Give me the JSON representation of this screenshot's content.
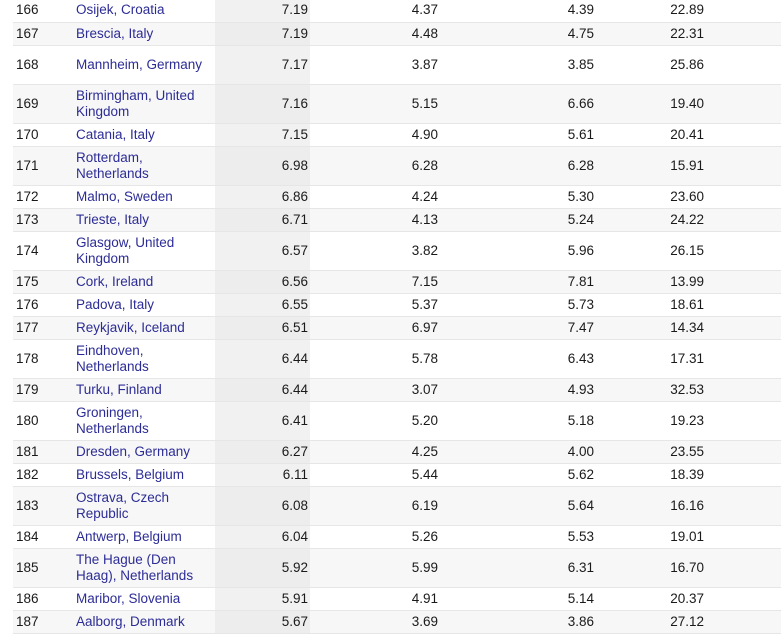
{
  "rows": [
    {
      "rank": "166",
      "city": "Osijek, Croatia",
      "index": "7.19",
      "v1": "4.37",
      "v2": "4.39",
      "v3": "22.89"
    },
    {
      "rank": "167",
      "city": "Brescia, Italy",
      "index": "7.19",
      "v1": "4.48",
      "v2": "4.75",
      "v3": "22.31"
    },
    {
      "rank": "168",
      "city": "Mannheim, Germany",
      "index": "7.17",
      "v1": "3.87",
      "v2": "3.85",
      "v3": "25.86"
    },
    {
      "rank": "169",
      "city": "Birmingham, United Kingdom",
      "index": "7.16",
      "v1": "5.15",
      "v2": "6.66",
      "v3": "19.40"
    },
    {
      "rank": "170",
      "city": "Catania, Italy",
      "index": "7.15",
      "v1": "4.90",
      "v2": "5.61",
      "v3": "20.41"
    },
    {
      "rank": "171",
      "city": "Rotterdam, Netherlands",
      "index": "6.98",
      "v1": "6.28",
      "v2": "6.28",
      "v3": "15.91"
    },
    {
      "rank": "172",
      "city": "Malmo, Sweden",
      "index": "6.86",
      "v1": "4.24",
      "v2": "5.30",
      "v3": "23.60"
    },
    {
      "rank": "173",
      "city": "Trieste, Italy",
      "index": "6.71",
      "v1": "4.13",
      "v2": "5.24",
      "v3": "24.22"
    },
    {
      "rank": "174",
      "city": "Glasgow, United Kingdom",
      "index": "6.57",
      "v1": "3.82",
      "v2": "5.96",
      "v3": "26.15"
    },
    {
      "rank": "175",
      "city": "Cork, Ireland",
      "index": "6.56",
      "v1": "7.15",
      "v2": "7.81",
      "v3": "13.99"
    },
    {
      "rank": "176",
      "city": "Padova, Italy",
      "index": "6.55",
      "v1": "5.37",
      "v2": "5.73",
      "v3": "18.61"
    },
    {
      "rank": "177",
      "city": "Reykjavik, Iceland",
      "index": "6.51",
      "v1": "6.97",
      "v2": "7.47",
      "v3": "14.34"
    },
    {
      "rank": "178",
      "city": "Eindhoven, Netherlands",
      "index": "6.44",
      "v1": "5.78",
      "v2": "6.43",
      "v3": "17.31"
    },
    {
      "rank": "179",
      "city": "Turku, Finland",
      "index": "6.44",
      "v1": "3.07",
      "v2": "4.93",
      "v3": "32.53"
    },
    {
      "rank": "180",
      "city": "Groningen, Netherlands",
      "index": "6.41",
      "v1": "5.20",
      "v2": "5.18",
      "v3": "19.23"
    },
    {
      "rank": "181",
      "city": "Dresden, Germany",
      "index": "6.27",
      "v1": "4.25",
      "v2": "4.00",
      "v3": "23.55"
    },
    {
      "rank": "182",
      "city": "Brussels, Belgium",
      "index": "6.11",
      "v1": "5.44",
      "v2": "5.62",
      "v3": "18.39"
    },
    {
      "rank": "183",
      "city": "Ostrava, Czech Republic",
      "index": "6.08",
      "v1": "6.19",
      "v2": "5.64",
      "v3": "16.16"
    },
    {
      "rank": "184",
      "city": "Antwerp, Belgium",
      "index": "6.04",
      "v1": "5.26",
      "v2": "5.53",
      "v3": "19.01"
    },
    {
      "rank": "185",
      "city": "The Hague (Den Haag), Netherlands",
      "index": "5.92",
      "v1": "5.99",
      "v2": "6.31",
      "v3": "16.70"
    },
    {
      "rank": "186",
      "city": "Maribor, Slovenia",
      "index": "5.91",
      "v1": "4.91",
      "v2": "5.14",
      "v3": "20.37"
    },
    {
      "rank": "187",
      "city": "Aalborg, Denmark",
      "index": "5.67",
      "v1": "3.69",
      "v2": "3.86",
      "v3": "27.12"
    }
  ]
}
